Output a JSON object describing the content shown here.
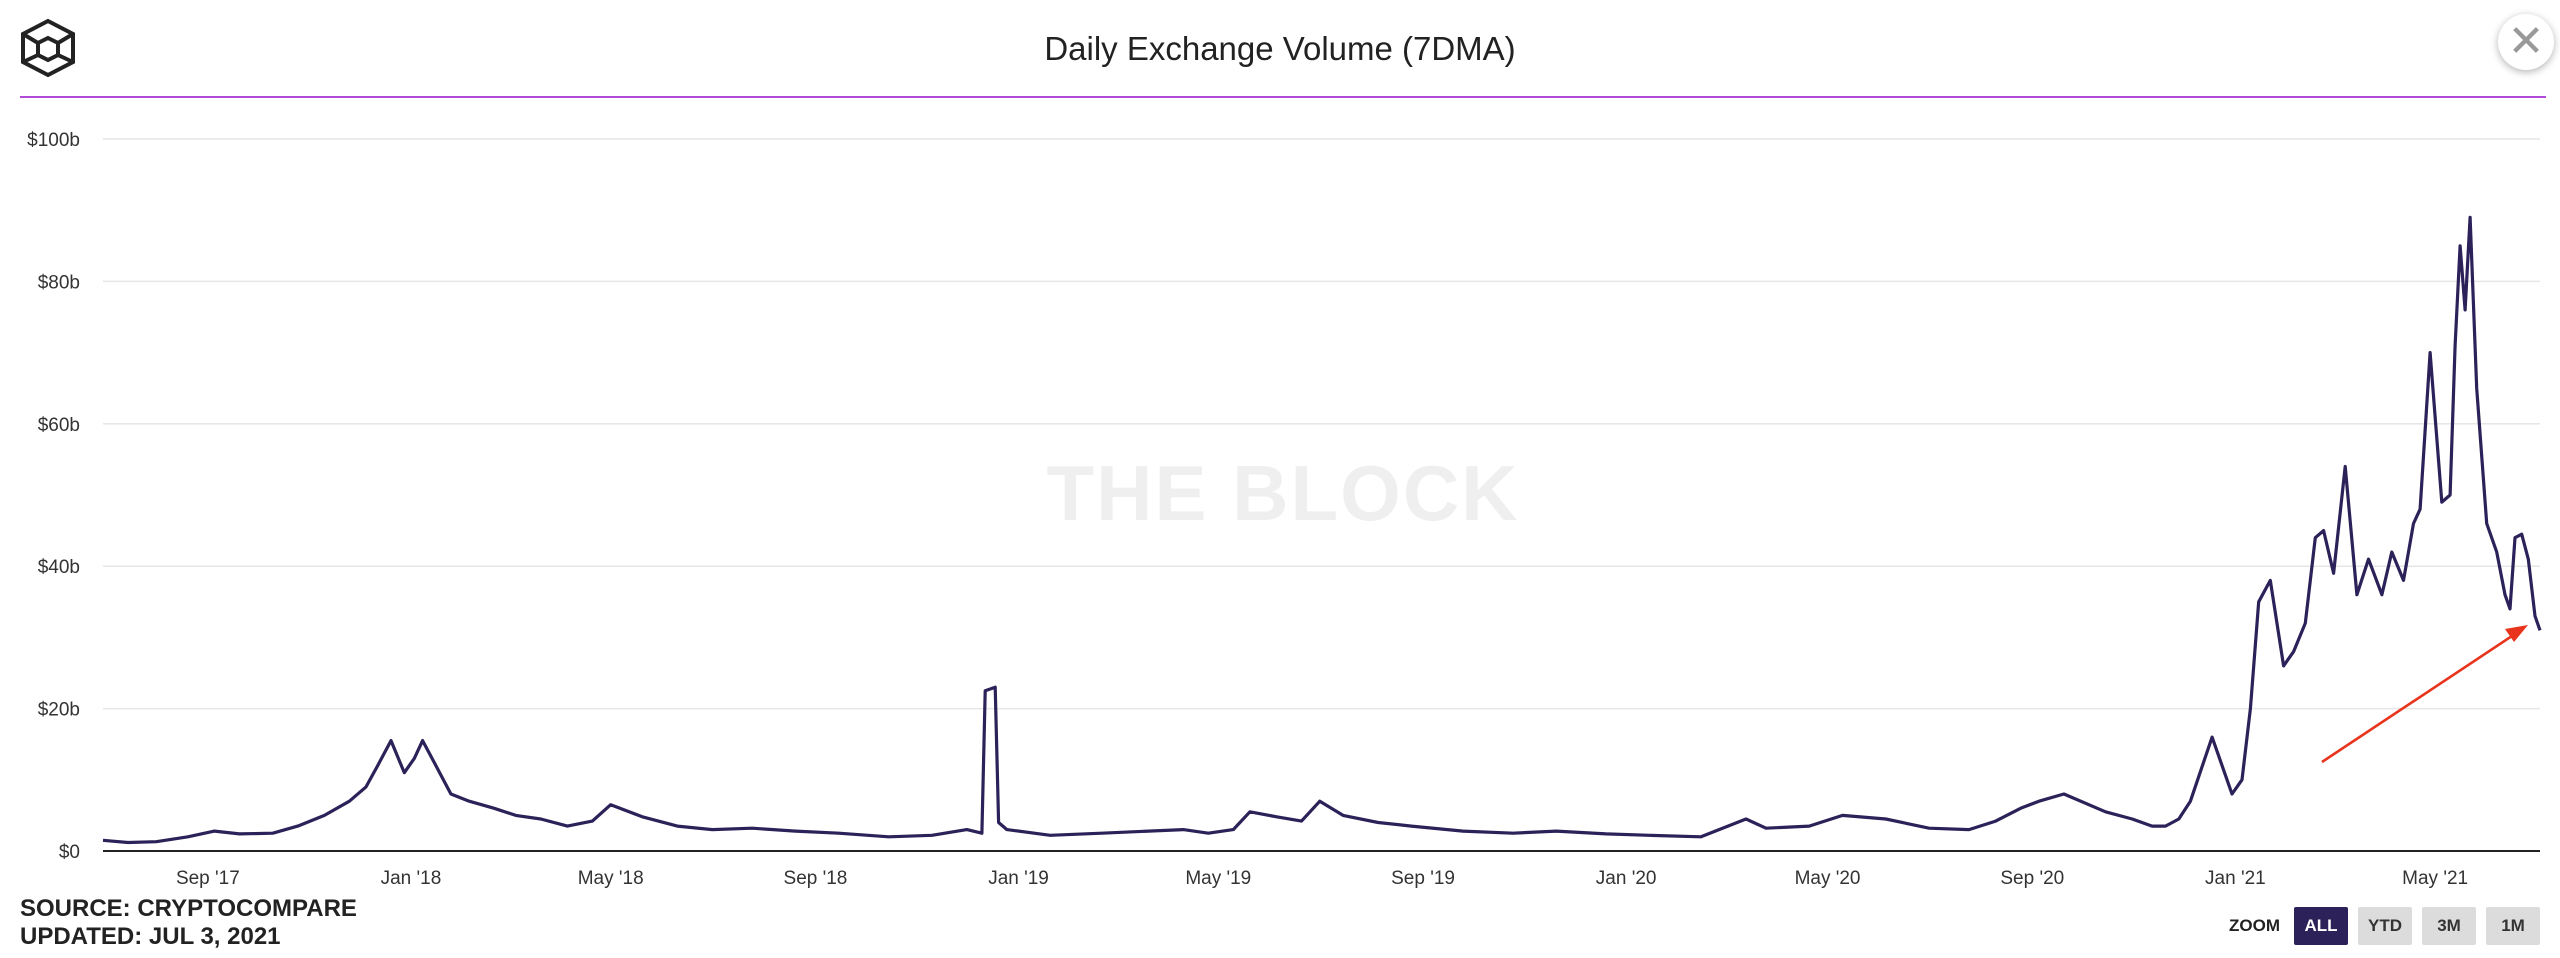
{
  "header": {
    "title": "Daily Exchange Volume (7DMA)",
    "close_label": "✕"
  },
  "footer": {
    "source": "SOURCE: CRYPTOCOMPARE",
    "updated": "UPDATED: JUL 3, 2021"
  },
  "zoom": {
    "label": "ZOOM",
    "buttons": [
      "ALL",
      "YTD",
      "3M",
      "1M"
    ],
    "active": "ALL"
  },
  "colors": {
    "line": "#2c2158",
    "accent_rule": "#b04ad8",
    "arrow": "#e8341c",
    "grid": "#e6e6e6"
  },
  "chart_data": {
    "type": "line",
    "title": "Daily Exchange Volume (7DMA)",
    "watermark": "THE BLOCK",
    "y_tick_labels": [
      "$0",
      "$20b",
      "$40b",
      "$60b",
      "$80b",
      "$100b"
    ],
    "y_ticks": [
      0,
      20,
      40,
      60,
      80,
      100
    ],
    "ylim": [
      0,
      100
    ],
    "y_unit": "billions USD",
    "xlim": [
      "2017-06-30",
      "2021-07-03"
    ],
    "x_ticks": [
      "2017-09-01",
      "2018-01-01",
      "2018-05-01",
      "2018-09-01",
      "2019-01-01",
      "2019-05-01",
      "2019-09-01",
      "2020-01-01",
      "2020-05-01",
      "2020-09-01",
      "2021-01-01",
      "2021-05-01"
    ],
    "x_tick_labels": [
      "Sep '17",
      "Jan '18",
      "May '18",
      "Sep '18",
      "Jan '19",
      "May '19",
      "Sep '19",
      "Jan '20",
      "May '20",
      "Sep '20",
      "Jan '21",
      "May '21"
    ],
    "grid": true,
    "legend": "none",
    "series": [
      {
        "x": [
          "2017-06-30",
          "2017-07-15",
          "2017-08-01",
          "2017-08-20",
          "2017-09-05",
          "2017-09-20",
          "2017-10-10",
          "2017-10-25",
          "2017-11-10",
          "2017-11-25",
          "2017-12-05",
          "2017-12-12",
          "2017-12-20",
          "2017-12-28",
          "2018-01-03",
          "2018-01-08",
          "2018-01-16",
          "2018-01-25",
          "2018-02-05",
          "2018-02-20",
          "2018-03-05",
          "2018-03-20",
          "2018-04-05",
          "2018-04-20",
          "2018-05-01",
          "2018-05-20",
          "2018-06-10",
          "2018-07-01",
          "2018-07-25",
          "2018-08-20",
          "2018-09-15",
          "2018-10-15",
          "2018-11-10",
          "2018-12-01",
          "2018-12-10",
          "2018-12-12",
          "2018-12-18",
          "2018-12-20",
          "2018-12-25",
          "2019-01-20",
          "2019-02-20",
          "2019-03-20",
          "2019-04-10",
          "2019-04-25",
          "2019-05-10",
          "2019-05-20",
          "2019-06-05",
          "2019-06-20",
          "2019-07-01",
          "2019-07-15",
          "2019-08-05",
          "2019-08-25",
          "2019-09-25",
          "2019-10-25",
          "2019-11-20",
          "2019-12-20",
          "2020-01-15",
          "2020-02-15",
          "2020-03-13",
          "2020-03-25",
          "2020-04-20",
          "2020-05-10",
          "2020-06-05",
          "2020-07-01",
          "2020-07-25",
          "2020-08-10",
          "2020-08-25",
          "2020-09-05",
          "2020-09-20",
          "2020-10-15",
          "2020-10-31",
          "2020-11-12",
          "2020-11-20",
          "2020-11-28",
          "2020-12-05",
          "2020-12-18",
          "2020-12-30",
          "2021-01-05",
          "2021-01-10",
          "2021-01-15",
          "2021-01-22",
          "2021-01-30",
          "2021-02-05",
          "2021-02-12",
          "2021-02-18",
          "2021-02-23",
          "2021-03-01",
          "2021-03-08",
          "2021-03-15",
          "2021-03-22",
          "2021-03-30",
          "2021-04-05",
          "2021-04-12",
          "2021-04-18",
          "2021-04-22",
          "2021-04-28",
          "2021-05-05",
          "2021-05-10",
          "2021-05-13",
          "2021-05-16",
          "2021-05-19",
          "2021-05-22",
          "2021-05-26",
          "2021-06-01",
          "2021-06-07",
          "2021-06-12",
          "2021-06-15",
          "2021-06-18",
          "2021-06-22",
          "2021-06-26",
          "2021-06-30",
          "2021-07-03"
        ],
        "y": [
          1.5,
          1.2,
          1.3,
          2.0,
          2.8,
          2.4,
          2.5,
          3.5,
          5.0,
          7.0,
          9.0,
          12.0,
          15.5,
          11.0,
          13.0,
          15.5,
          12.0,
          8.0,
          7.0,
          6.0,
          5.0,
          4.5,
          3.5,
          4.2,
          6.5,
          4.8,
          3.5,
          3.0,
          3.2,
          2.8,
          2.5,
          2.0,
          2.2,
          3.0,
          2.5,
          22.5,
          23.0,
          4.0,
          3.0,
          2.2,
          2.5,
          2.8,
          3.0,
          2.5,
          3.0,
          5.5,
          4.8,
          4.2,
          7.0,
          5.0,
          4.0,
          3.5,
          2.8,
          2.5,
          2.8,
          2.4,
          2.2,
          2.0,
          4.5,
          3.2,
          3.5,
          5.0,
          4.5,
          3.2,
          3.0,
          4.2,
          6.0,
          7.0,
          8.0,
          5.5,
          4.5,
          3.5,
          3.5,
          4.5,
          7.0,
          16.0,
          8.0,
          10.0,
          20.0,
          35.0,
          38.0,
          26.0,
          28.0,
          32.0,
          44.0,
          45.0,
          39.0,
          54.0,
          36.0,
          41.0,
          36.0,
          42.0,
          38.0,
          46.0,
          48.0,
          70.0,
          49.0,
          50.0,
          71.0,
          85.0,
          76.0,
          89.0,
          65.0,
          46.0,
          42.0,
          36.0,
          34.0,
          44.0,
          44.5,
          41.0,
          33.0,
          31.0
        ]
      }
    ]
  }
}
